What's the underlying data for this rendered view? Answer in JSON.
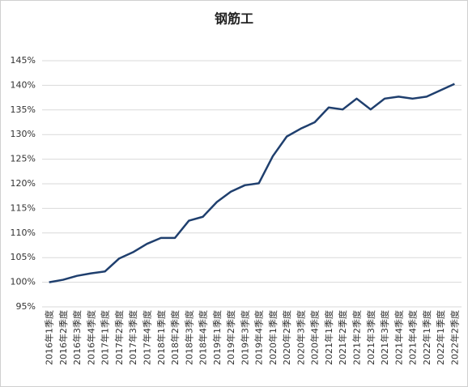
{
  "chart_data": {
    "type": "line",
    "title": "钢筋工",
    "categories": [
      "2016年1季度",
      "2016年2季度",
      "2016年3季度",
      "2016年4季度",
      "2017年1季度",
      "2017年2季度",
      "2017年3季度",
      "2017年4季度",
      "2018年1季度",
      "2018年2季度",
      "2018年3季度",
      "2018年4季度",
      "2019年1季度",
      "2019年2季度",
      "2019年3季度",
      "2019年4季度",
      "2020年1季度",
      "2020年2季度",
      "2020年3季度",
      "2020年4季度",
      "2021年1季度",
      "2021年2季度",
      "2021年2季度",
      "2021年3季度",
      "2021年3季度",
      "2021年4季度",
      "2021年4季度",
      "2022年1季度",
      "2022年1季度",
      "2022年2季度"
    ],
    "values": [
      100.0,
      100.5,
      101.3,
      101.8,
      102.2,
      104.8,
      106.1,
      107.8,
      109.0,
      109.0,
      112.5,
      113.3,
      116.3,
      118.4,
      119.7,
      120.1,
      125.6,
      129.6,
      131.2,
      132.5,
      135.5,
      135.1,
      137.3,
      135.1,
      137.3,
      137.7,
      137.3,
      137.7,
      139.0,
      140.3
    ],
    "color": "#1f3f6e",
    "ylim": [
      95,
      145
    ],
    "yticks": [
      {
        "value": 95,
        "label": "95%"
      },
      {
        "value": 100,
        "label": "100%"
      },
      {
        "value": 105,
        "label": "105%"
      },
      {
        "value": 110,
        "label": "110%"
      },
      {
        "value": 115,
        "label": "115%"
      },
      {
        "value": 120,
        "label": "120%"
      },
      {
        "value": 125,
        "label": "125%"
      },
      {
        "value": 130,
        "label": "130%"
      },
      {
        "value": 135,
        "label": "135%"
      },
      {
        "value": 140,
        "label": "140%"
      },
      {
        "value": 145,
        "label": "145%"
      }
    ],
    "grid": true
  }
}
